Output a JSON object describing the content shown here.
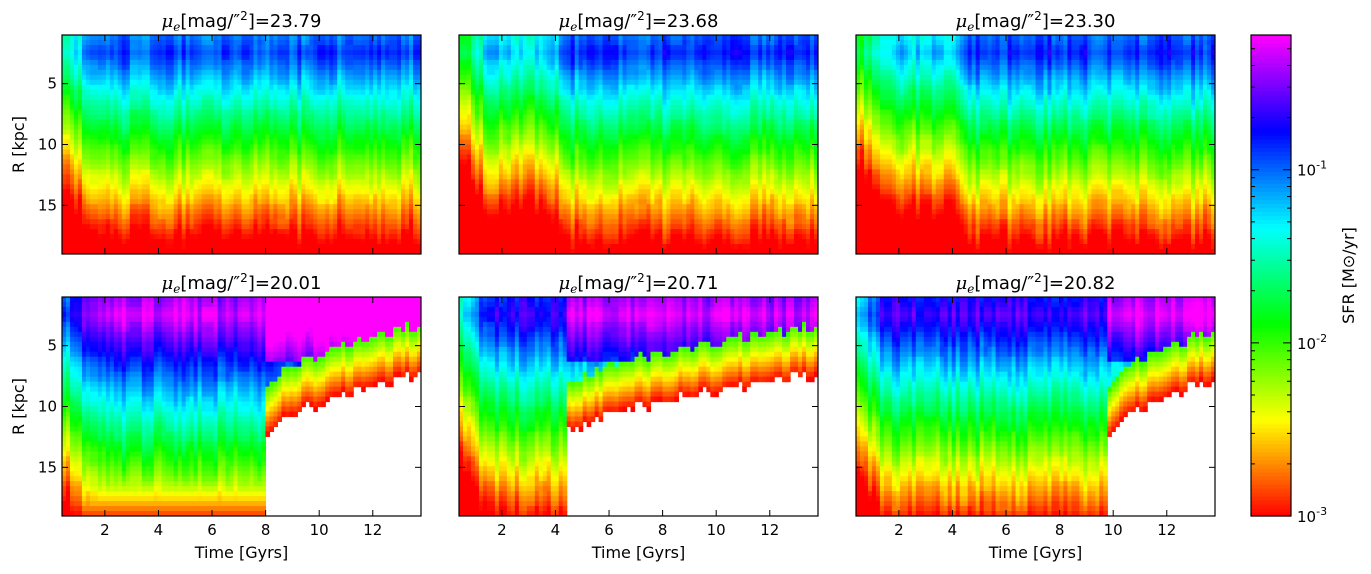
{
  "chart_data": {
    "type": "heatmap",
    "description_colormap": "gist_rainbow, log scale",
    "colorbar": {
      "label": "SFR [M⊙/yr]",
      "scale": "log",
      "range": [
        0.001,
        0.6
      ],
      "ticks": [
        {
          "value": 0.001,
          "base": "10",
          "exp": "-3"
        },
        {
          "value": 0.01,
          "base": "10",
          "exp": "-2"
        },
        {
          "value": 0.1,
          "base": "10",
          "exp": "-1"
        }
      ],
      "colors": [
        "#ff0000",
        "#ff8000",
        "#ffff00",
        "#80ff00",
        "#00ff00",
        "#00ff80",
        "#00ffff",
        "#0080ff",
        "#0000ff",
        "#8000ff",
        "#ff00ff"
      ]
    },
    "xlabel": "Time [Gyrs]",
    "ylabel": "R [kpc]",
    "xlim": [
      0.4,
      13.8
    ],
    "ylim": [
      19,
      1
    ],
    "xticks": [
      2,
      4,
      6,
      8,
      10,
      12
    ],
    "yticks": [
      5,
      10,
      15
    ],
    "panels": [
      {
        "title_value": "23.79",
        "truncation_time": null,
        "inner_peak_log": -0.9,
        "early_log": -1.6
      },
      {
        "title_value": "23.68",
        "truncation_time": null,
        "inner_peak_log": -0.85,
        "early_log": -1.8,
        "step_time": 4.4
      },
      {
        "title_value": "23.30",
        "truncation_time": null,
        "inner_peak_log": -0.85,
        "early_log": -1.6,
        "step_time": 4.5
      },
      {
        "title_value": "20.01",
        "truncation_time": 8.0,
        "inner_peak_log": -0.3,
        "early_log": -1.0,
        "edge_end_kpc": 7.2
      },
      {
        "title_value": "20.71",
        "truncation_time": 4.4,
        "inner_peak_log": -0.65,
        "early_log": -1.1,
        "edge_end_kpc": 7.3
      },
      {
        "title_value": "20.82",
        "truncation_time": 9.8,
        "inner_peak_log": -0.6,
        "early_log": -1.5,
        "edge_end_kpc": 7.7
      }
    ],
    "title_prefix": "μ",
    "title_sub": "e",
    "title_mid": "[mag/″",
    "title_sup": "2",
    "title_suffix": "]="
  }
}
